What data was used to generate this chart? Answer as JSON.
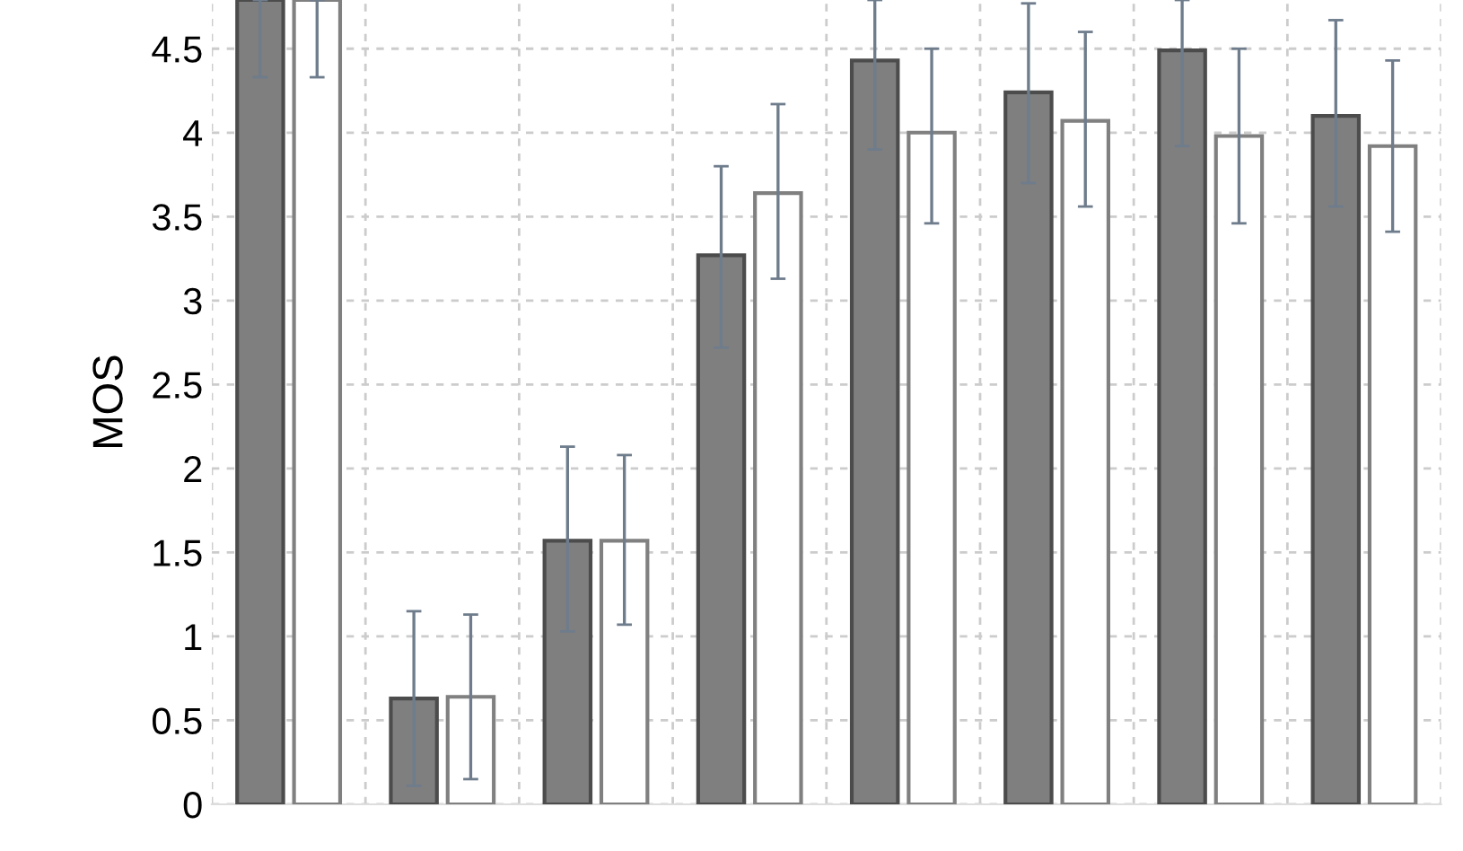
{
  "chart_data": {
    "type": "bar",
    "ylabel": "MOS",
    "categories": [
      null,
      null,
      null,
      null,
      null,
      null,
      null,
      null
    ],
    "series": [
      {
        "color": "#7f7f7f",
        "values": [
          4.79,
          0.63,
          1.57,
          3.27,
          4.43,
          4.24,
          4.49,
          4.1
        ],
        "errors": [
          [
            4.33,
            4.79
          ],
          [
            0.11,
            1.15
          ],
          [
            1.03,
            2.13
          ],
          [
            2.72,
            3.8
          ],
          [
            3.9,
            4.79
          ],
          [
            3.7,
            4.77
          ],
          [
            3.92,
            4.79
          ],
          [
            3.56,
            4.67
          ]
        ]
      },
      {
        "color": "#ffffff",
        "values": [
          4.79,
          0.64,
          1.57,
          3.64,
          4.0,
          4.07,
          3.98,
          3.92
        ],
        "errors": [
          [
            4.33,
            4.79
          ],
          [
            0.15,
            1.13
          ],
          [
            1.07,
            2.08
          ],
          [
            3.13,
            4.17
          ],
          [
            3.46,
            4.5
          ],
          [
            3.56,
            4.6
          ],
          [
            3.46,
            4.5
          ],
          [
            3.41,
            4.43
          ]
        ]
      }
    ],
    "ylim": [
      0,
      4.79
    ],
    "yticks": [
      0,
      0.5,
      1,
      1.5,
      2,
      2.5,
      3,
      3.5,
      4,
      4.5
    ],
    "grid": true
  }
}
